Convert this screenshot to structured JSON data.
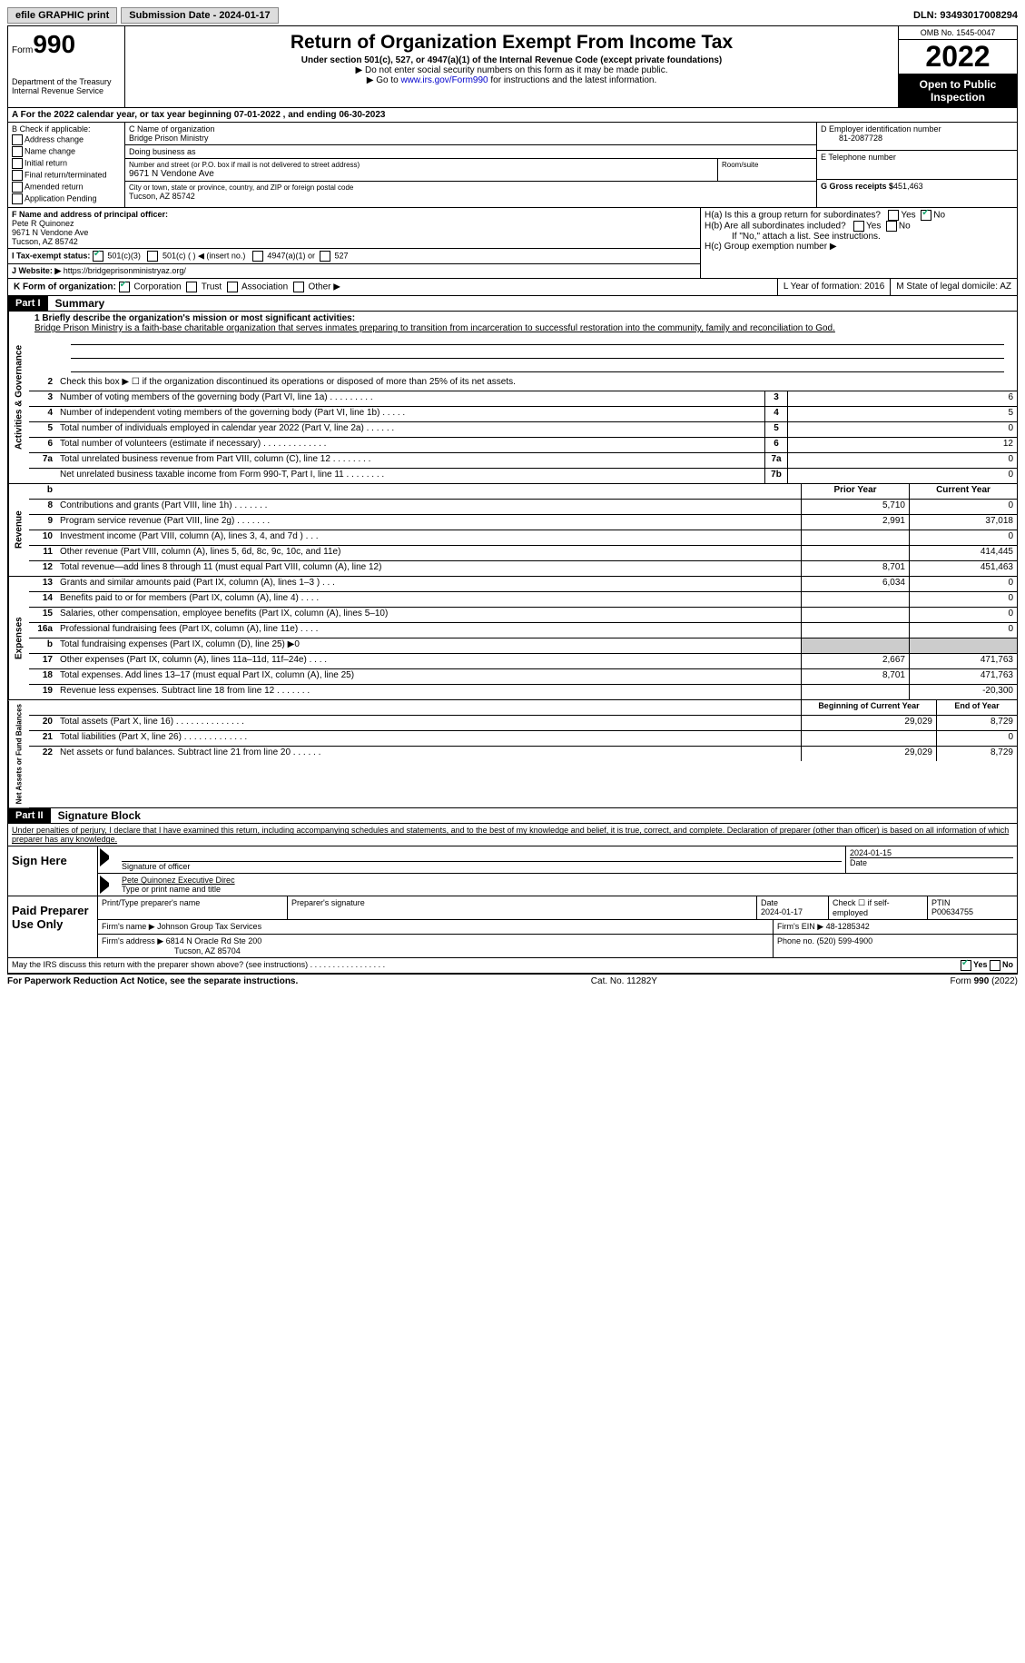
{
  "topbar": {
    "efile": "efile GRAPHIC print",
    "submission": "Submission Date - 2024-01-17",
    "dln": "DLN: 93493017008294"
  },
  "header": {
    "form": "Form",
    "num": "990",
    "dept": "Department of the Treasury\nInternal Revenue Service",
    "title": "Return of Organization Exempt From Income Tax",
    "sub": "Under section 501(c), 527, or 4947(a)(1) of the Internal Revenue Code (except private foundations)",
    "note1": "▶ Do not enter social security numbers on this form as it may be made public.",
    "note2_pre": "▶ Go to ",
    "note2_link": "www.irs.gov/Form990",
    "note2_post": " for instructions and the latest information.",
    "omb": "OMB No. 1545-0047",
    "year": "2022",
    "open": "Open to Public Inspection"
  },
  "lineA": "A For the 2022 calendar year, or tax year beginning 07-01-2022    , and ending 06-30-2023",
  "b": {
    "label": "B Check if applicable:",
    "opts": [
      "Address change",
      "Name change",
      "Initial return",
      "Final return/terminated",
      "Amended return",
      "Application Pending"
    ]
  },
  "c": {
    "name_label": "C Name of organization",
    "name": "Bridge Prison Ministry",
    "dba_label": "Doing business as",
    "street_label": "Number and street (or P.O. box if mail is not delivered to street address)",
    "room_label": "Room/suite",
    "street": "9671 N Vendone Ave",
    "city_label": "City or town, state or province, country, and ZIP or foreign postal code",
    "city": "Tucson, AZ  85742"
  },
  "d": {
    "label": "D Employer identification number",
    "value": "81-2087728"
  },
  "e": {
    "label": "E Telephone number"
  },
  "g": {
    "label": "G Gross receipts $",
    "value": "451,463"
  },
  "f": {
    "label": "F Name and address of principal officer:",
    "name": "Pete R Quinonez",
    "addr1": "9671 N Vendone Ave",
    "addr2": "Tucson, AZ  85742"
  },
  "h": {
    "a": "H(a)  Is this a group return for subordinates?",
    "b": "H(b)  Are all subordinates included?",
    "bnote": "If \"No,\" attach a list. See instructions.",
    "c": "H(c)  Group exemption number ▶",
    "yes": "Yes",
    "no": "No"
  },
  "i": {
    "label": "I   Tax-exempt status:",
    "o1": "501(c)(3)",
    "o2": "501(c) (  ) ◀ (insert no.)",
    "o3": "4947(a)(1) or",
    "o4": "527"
  },
  "j": {
    "label": "J   Website: ▶",
    "value": "https://bridgeprisonministryaz.org/"
  },
  "k": {
    "label": "K Form of organization:",
    "opts": [
      "Corporation",
      "Trust",
      "Association",
      "Other ▶"
    ],
    "l": "L Year of formation: 2016",
    "m": "M State of legal domicile: AZ"
  },
  "part1": {
    "hdr": "Part I",
    "title": "Summary"
  },
  "mission": {
    "q": "1   Briefly describe the organization's mission or most significant activities:",
    "text": "Bridge Prison Ministry is a faith-base charitable organization that serves inmates preparing to transition from incarceration to successful restoration into the community, family and reconciliation to God."
  },
  "line2": "Check this box ▶ ☐ if the organization discontinued its operations or disposed of more than 25% of its net assets.",
  "gov": [
    {
      "n": "3",
      "t": "Number of voting members of the governing body (Part VI, line 1a)  .   .   .   .   .   .   .   .   .",
      "b": "3",
      "v": "6"
    },
    {
      "n": "4",
      "t": "Number of independent voting members of the governing body (Part VI, line 1b)  .   .   .   .   .",
      "b": "4",
      "v": "5"
    },
    {
      "n": "5",
      "t": "Total number of individuals employed in calendar year 2022 (Part V, line 2a)  .   .   .   .   .   .",
      "b": "5",
      "v": "0"
    },
    {
      "n": "6",
      "t": "Total number of volunteers (estimate if necessary)    .   .   .   .   .   .   .   .   .   .   .   .   .",
      "b": "6",
      "v": "12"
    },
    {
      "n": "7a",
      "t": "Total unrelated business revenue from Part VIII, column (C), line 12  .   .   .   .   .   .   .   .",
      "b": "7a",
      "v": "0"
    },
    {
      "n": "",
      "t": "Net unrelated business taxable income from Form 990-T, Part I, line 11  .   .   .   .   .   .   .   .",
      "b": "7b",
      "v": "0"
    }
  ],
  "rev_hdr": {
    "prior": "Prior Year",
    "current": "Current Year"
  },
  "rev": [
    {
      "n": "8",
      "t": "Contributions and grants (Part VIII, line 1h)   .   .   .   .   .   .   .",
      "p": "5,710",
      "c": "0"
    },
    {
      "n": "9",
      "t": "Program service revenue (Part VIII, line 2g)   .   .   .   .   .   .   .",
      "p": "2,991",
      "c": "37,018"
    },
    {
      "n": "10",
      "t": "Investment income (Part VIII, column (A), lines 3, 4, and 7d )  .   .   .",
      "p": "",
      "c": "0"
    },
    {
      "n": "11",
      "t": "Other revenue (Part VIII, column (A), lines 5, 6d, 8c, 9c, 10c, and 11e)",
      "p": "",
      "c": "414,445"
    },
    {
      "n": "12",
      "t": "Total revenue—add lines 8 through 11 (must equal Part VIII, column (A), line 12)",
      "p": "8,701",
      "c": "451,463"
    }
  ],
  "exp": [
    {
      "n": "13",
      "t": "Grants and similar amounts paid (Part IX, column (A), lines 1–3 )  .   .   .",
      "p": "6,034",
      "c": "0"
    },
    {
      "n": "14",
      "t": "Benefits paid to or for members (Part IX, column (A), line 4)  .   .   .   .",
      "p": "",
      "c": "0"
    },
    {
      "n": "15",
      "t": "Salaries, other compensation, employee benefits (Part IX, column (A), lines 5–10)",
      "p": "",
      "c": "0"
    },
    {
      "n": "16a",
      "t": "Professional fundraising fees (Part IX, column (A), line 11e)  .   .   .   .",
      "p": "",
      "c": "0"
    },
    {
      "n": "b",
      "t": "Total fundraising expenses (Part IX, column (D), line 25) ▶0",
      "p": "shade",
      "c": "shade"
    },
    {
      "n": "17",
      "t": "Other expenses (Part IX, column (A), lines 11a–11d, 11f–24e)  .   .   .   .",
      "p": "2,667",
      "c": "471,763"
    },
    {
      "n": "18",
      "t": "Total expenses. Add lines 13–17 (must equal Part IX, column (A), line 25)",
      "p": "8,701",
      "c": "471,763"
    },
    {
      "n": "19",
      "t": "Revenue less expenses. Subtract line 18 from line 12  .   .   .   .   .   .   .",
      "p": "",
      "c": "-20,300"
    }
  ],
  "net_hdr": {
    "begin": "Beginning of Current Year",
    "end": "End of Year"
  },
  "net": [
    {
      "n": "20",
      "t": "Total assets (Part X, line 16)  .   .   .   .   .   .   .   .   .   .   .   .   .   .",
      "p": "29,029",
      "c": "8,729"
    },
    {
      "n": "21",
      "t": "Total liabilities (Part X, line 26)  .   .   .   .   .   .   .   .   .   .   .   .   .",
      "p": "",
      "c": "0"
    },
    {
      "n": "22",
      "t": "Net assets or fund balances. Subtract line 21 from line 20  .   .   .   .   .   .",
      "p": "29,029",
      "c": "8,729"
    }
  ],
  "vert": {
    "gov": "Activities & Governance",
    "rev": "Revenue",
    "exp": "Expenses",
    "net": "Net Assets or Fund Balances"
  },
  "part2": {
    "hdr": "Part II",
    "title": "Signature Block"
  },
  "penalty": "Under penalties of perjury, I declare that I have examined this return, including accompanying schedules and statements, and to the best of my knowledge and belief, it is true, correct, and complete. Declaration of preparer (other than officer) is based on all information of which preparer has any knowledge.",
  "sign": {
    "here": "Sign Here",
    "sigoff": "Signature of officer",
    "date": "Date",
    "date_val": "2024-01-15",
    "name": "Pete Quinonez  Executive Direc",
    "name_label": "Type or print name and title"
  },
  "paid": {
    "label": "Paid Preparer Use Only",
    "print_label": "Print/Type preparer's name",
    "sig_label": "Preparer's signature",
    "date_label": "Date",
    "date": "2024-01-17",
    "check_label": "Check ☐ if self-employed",
    "ptin_label": "PTIN",
    "ptin": "P00634755",
    "firm_name_label": "Firm's name   ▶",
    "firm_name": "Johnson Group Tax Services",
    "firm_ein_label": "Firm's EIN ▶",
    "firm_ein": "48-1285342",
    "firm_addr_label": "Firm's address ▶",
    "firm_addr": "6814 N Oracle Rd Ste 200",
    "firm_city": "Tucson, AZ  85704",
    "phone_label": "Phone no.",
    "phone": "(520) 599-4900"
  },
  "discuss": "May the IRS discuss this return with the preparer shown above? (see instructions)   .   .   .   .   .   .   .   .   .   .   .   .   .   .   .   .   .",
  "footer": {
    "left": "For Paperwork Reduction Act Notice, see the separate instructions.",
    "mid": "Cat. No. 11282Y",
    "right": "Form 990 (2022)"
  }
}
